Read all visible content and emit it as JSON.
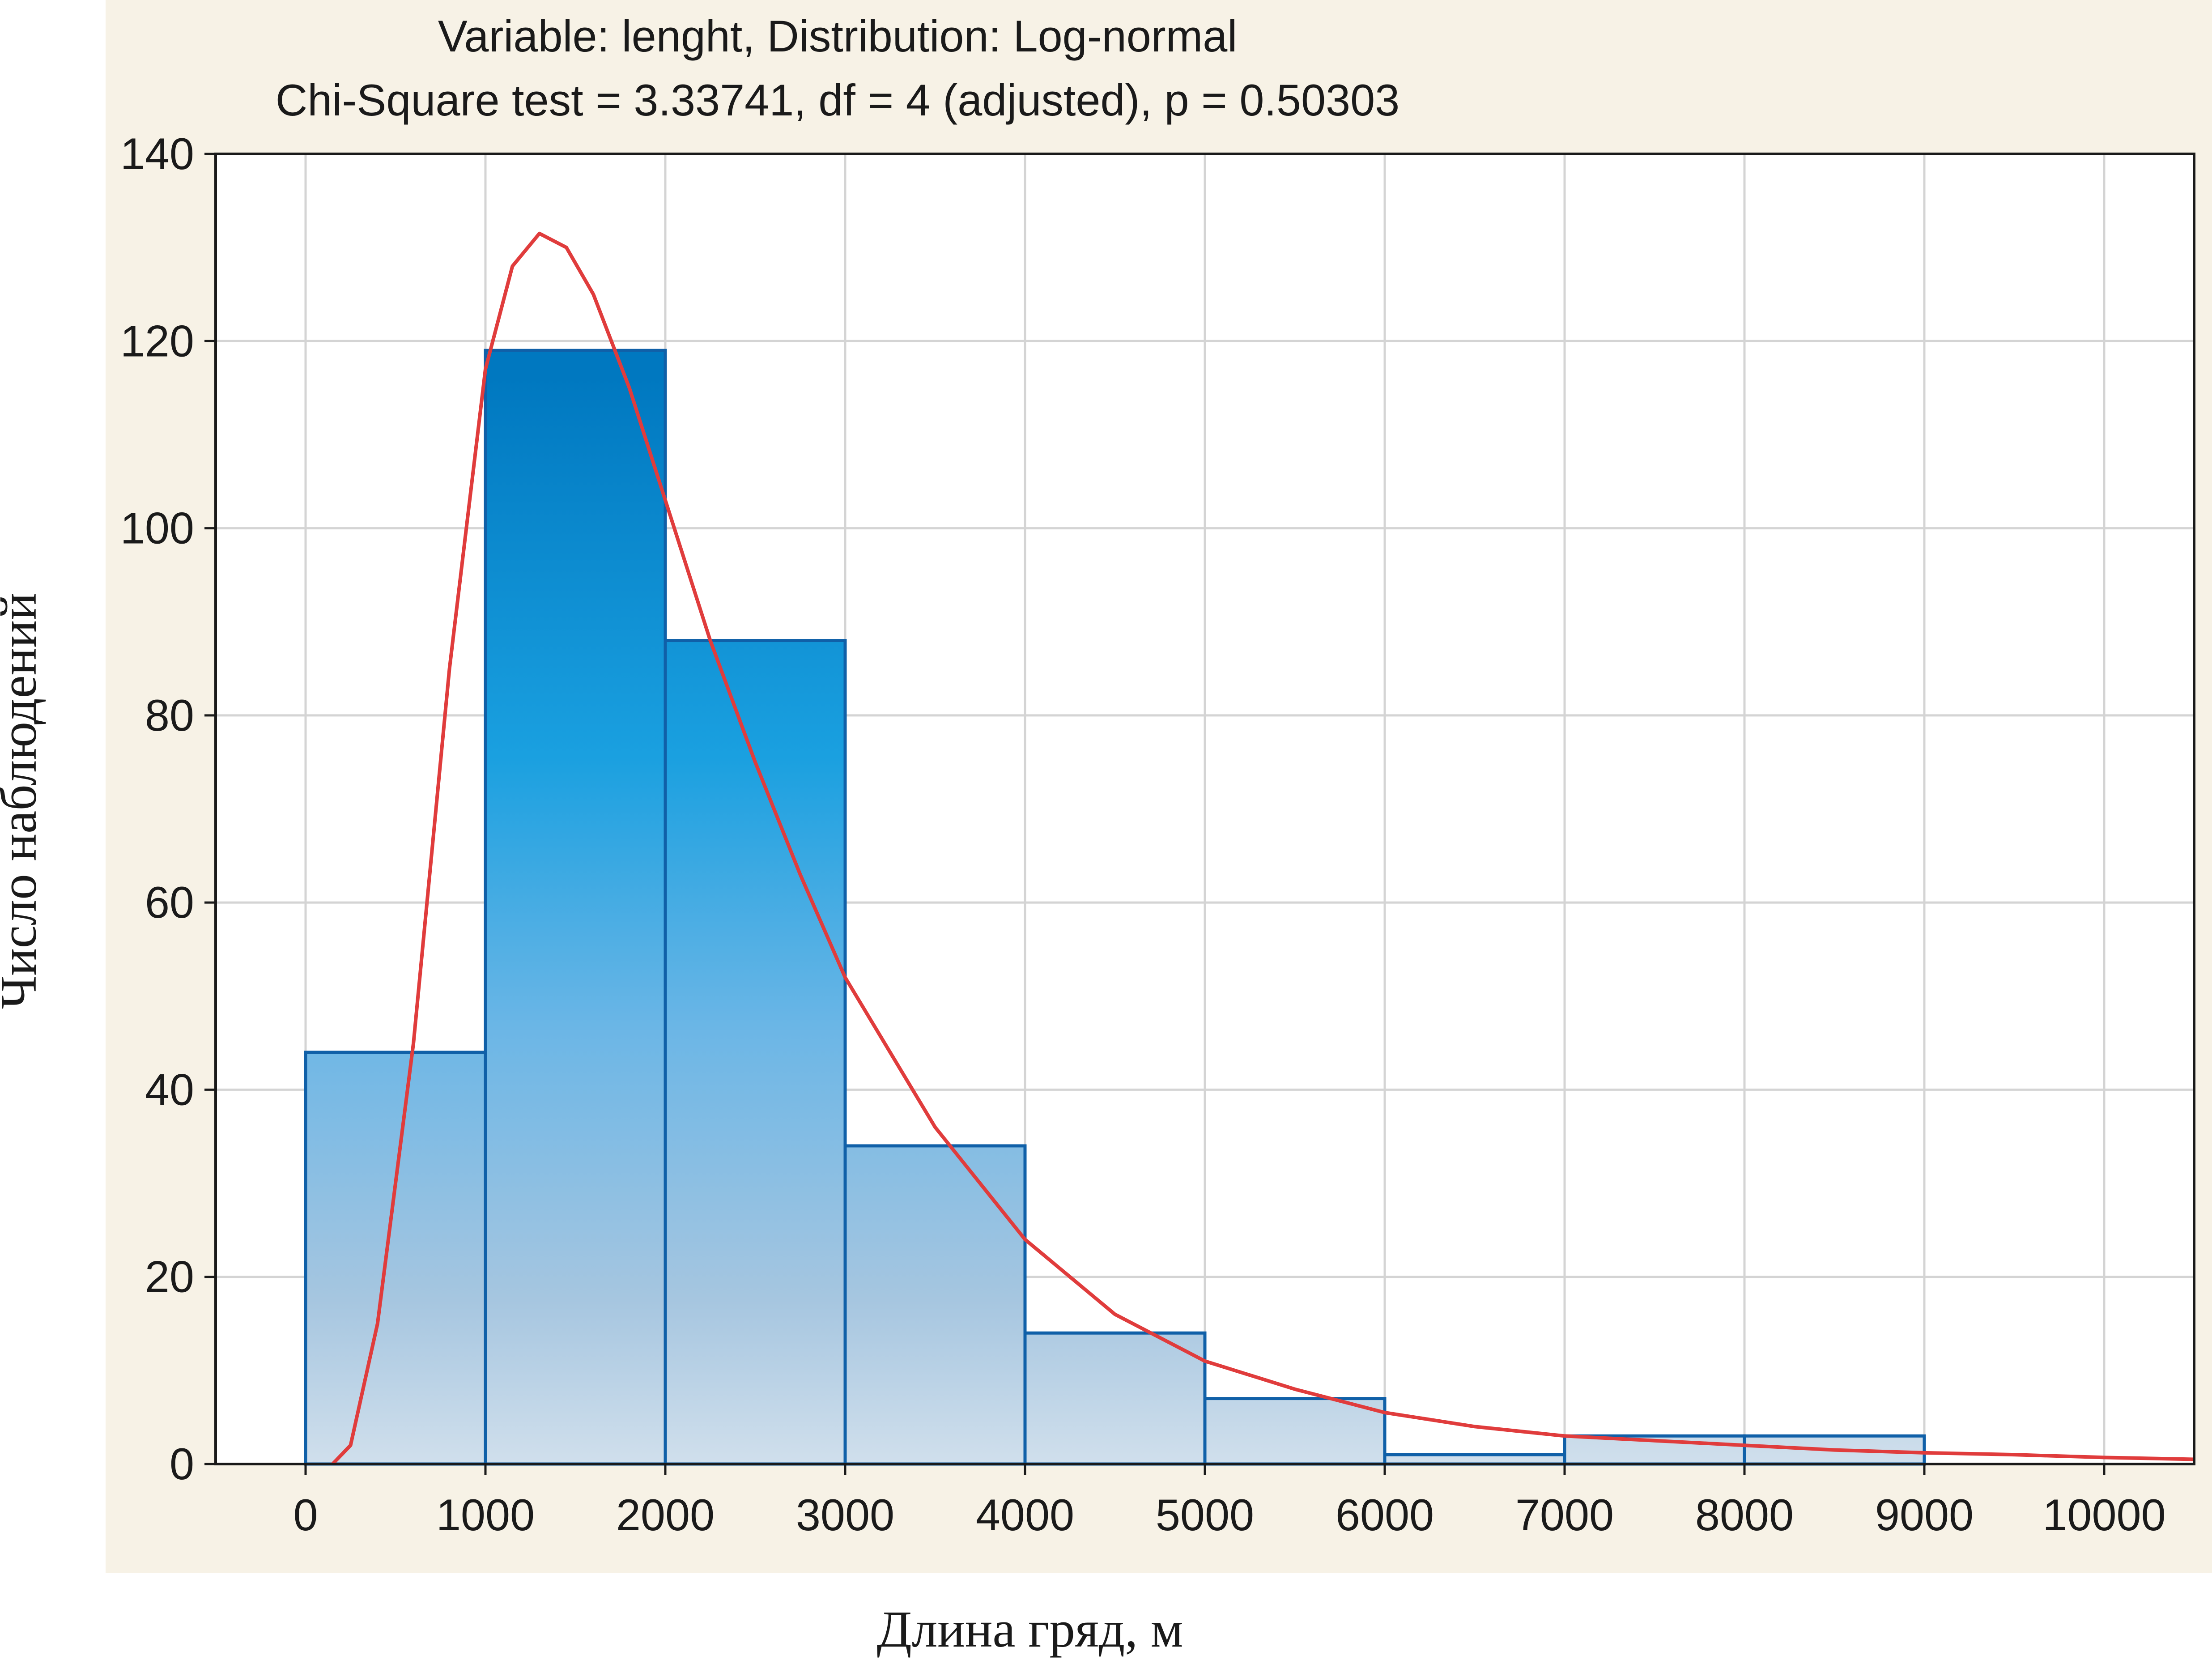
{
  "chart_data": {
    "type": "bar",
    "title": "Variable: lenght, Distribution: Log-normal",
    "subtitle": "Chi-Square test = 3.33741, df = 4 (adjusted), p = 0.50303",
    "xlabel": "Длина гряд, м",
    "ylabel": "Число наблюдений",
    "xlim": [
      -500,
      10500
    ],
    "ylim": [
      0,
      140
    ],
    "x_ticks": [
      0,
      1000,
      2000,
      3000,
      4000,
      5000,
      6000,
      7000,
      8000,
      9000,
      10000
    ],
    "y_ticks": [
      0,
      20,
      40,
      60,
      80,
      100,
      120,
      140
    ],
    "grid": true,
    "bins": [
      {
        "start": 0,
        "end": 1000,
        "count": 44
      },
      {
        "start": 1000,
        "end": 2000,
        "count": 119
      },
      {
        "start": 2000,
        "end": 3000,
        "count": 88
      },
      {
        "start": 3000,
        "end": 4000,
        "count": 34
      },
      {
        "start": 4000,
        "end": 5000,
        "count": 14
      },
      {
        "start": 5000,
        "end": 6000,
        "count": 7
      },
      {
        "start": 6000,
        "end": 7000,
        "count": 1
      },
      {
        "start": 7000,
        "end": 8000,
        "count": 3
      },
      {
        "start": 8000,
        "end": 9000,
        "count": 3
      }
    ],
    "fit_curve": {
      "distribution": "Log-normal",
      "color": "#e03c3c",
      "x": [
        150,
        250,
        400,
        600,
        800,
        1000,
        1150,
        1300,
        1450,
        1600,
        1800,
        2000,
        2250,
        2500,
        2750,
        3000,
        3500,
        4000,
        4500,
        5000,
        5500,
        6000,
        6500,
        7000,
        7500,
        8000,
        8500,
        9000,
        9500,
        10000,
        10500
      ],
      "y": [
        0,
        2,
        15,
        45,
        85,
        117,
        128,
        131.5,
        130,
        125,
        115,
        103,
        88,
        75,
        63,
        52,
        36,
        24,
        16,
        11,
        8,
        5.5,
        4,
        3,
        2.5,
        2,
        1.5,
        1.2,
        1,
        0.7,
        0.5
      ]
    },
    "colors": {
      "bar_top": "#0078c0",
      "bar_mid": "#4aa8e0",
      "bar_bottom": "#c9daea",
      "bar_stroke": "#1060a8",
      "background": "#f7f2e6",
      "plot_background": "#ffffff",
      "grid": "#d4d4d4"
    }
  }
}
